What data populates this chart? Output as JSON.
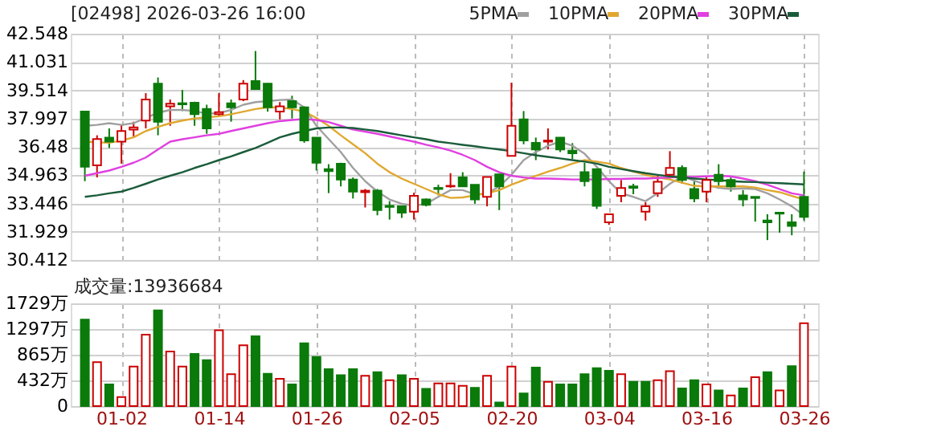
{
  "chart_data": [
    {
      "type": "candlestick",
      "title": "[02498] 2026-03-26 16:00",
      "categories": [
        null,
        null,
        null,
        null,
        null,
        null,
        null,
        null,
        null,
        null,
        null,
        null,
        null,
        null,
        null,
        null,
        null,
        null,
        null,
        null,
        null,
        null,
        null,
        null,
        null,
        null,
        null,
        null,
        null,
        null,
        null,
        null,
        null,
        null,
        null,
        null,
        null,
        null,
        null,
        null,
        null,
        null,
        null,
        null,
        null,
        null,
        null,
        null,
        null,
        null,
        null,
        null,
        null,
        null,
        null,
        null,
        null,
        null,
        null,
        null
      ],
      "ohlc": [
        [
          38.37,
          38.4,
          34.64,
          35.41
        ],
        [
          35.49,
          37.1,
          34.84,
          36.9
        ],
        [
          36.98,
          37.47,
          36.42,
          36.76
        ],
        [
          36.76,
          37.67,
          35.58,
          37.33
        ],
        [
          37.41,
          37.83,
          37.04,
          37.52
        ],
        [
          37.89,
          39.36,
          37.47,
          39.02
        ],
        [
          39.87,
          40.2,
          37.1,
          37.83
        ],
        [
          38.65,
          39.02,
          37.61,
          38.79
        ],
        [
          38.82,
          39.53,
          38.4,
          38.76
        ],
        [
          38.85,
          38.9,
          37.61,
          38.23
        ],
        [
          38.51,
          38.74,
          37.18,
          37.47
        ],
        [
          38.23,
          39.36,
          38.12,
          38.34
        ],
        [
          38.82,
          39.02,
          37.83,
          38.6
        ],
        [
          39.02,
          40.06,
          38.93,
          39.87
        ],
        [
          40.01,
          41.62,
          39.58,
          39.58
        ],
        [
          39.87,
          39.9,
          38.37,
          38.6
        ],
        [
          38.37,
          38.88,
          37.95,
          38.65
        ],
        [
          38.93,
          39.22,
          38.0,
          38.6
        ],
        [
          38.6,
          38.65,
          36.7,
          36.82
        ],
        [
          36.98,
          37.0,
          35.21,
          35.63
        ],
        [
          35.29,
          35.55,
          34.0,
          35.18
        ],
        [
          35.58,
          35.63,
          34.36,
          34.73
        ],
        [
          34.73,
          34.84,
          33.71,
          34.08
        ],
        [
          34.05,
          34.22,
          33.23,
          34.13
        ],
        [
          34.13,
          34.22,
          32.81,
          33.09
        ],
        [
          33.32,
          33.57,
          32.58,
          33.26
        ],
        [
          33.29,
          33.3,
          32.67,
          32.95
        ],
        [
          33.01,
          34.02,
          32.58,
          33.85
        ],
        [
          33.66,
          33.71,
          33.29,
          33.37
        ],
        [
          34.28,
          34.45,
          33.88,
          34.22
        ],
        [
          34.36,
          35.07,
          34.28,
          34.39
        ],
        [
          34.84,
          35.12,
          34.36,
          34.36
        ],
        [
          34.45,
          34.45,
          33.43,
          33.66
        ],
        [
          33.8,
          34.87,
          33.29,
          34.87
        ],
        [
          35.01,
          35.01,
          33.09,
          34.36
        ],
        [
          36.0,
          39.92,
          36.0,
          37.61
        ],
        [
          37.95,
          38.4,
          36.62,
          36.82
        ],
        [
          36.7,
          36.98,
          35.77,
          36.34
        ],
        [
          36.76,
          37.47,
          36.34,
          36.82
        ],
        [
          36.98,
          37.0,
          36.2,
          36.34
        ],
        [
          36.28,
          36.68,
          35.83,
          36.14
        ],
        [
          35.12,
          35.63,
          34.36,
          34.64
        ],
        [
          35.29,
          35.3,
          33.15,
          33.32
        ],
        [
          32.44,
          32.87,
          32.3,
          32.87
        ],
        [
          33.85,
          34.7,
          33.51,
          34.27
        ],
        [
          34.36,
          34.5,
          33.94,
          34.28
        ],
        [
          33.01,
          33.51,
          32.53,
          33.29
        ],
        [
          33.99,
          34.93,
          33.8,
          34.61
        ],
        [
          34.98,
          36.25,
          34.78,
          35.35
        ],
        [
          35.35,
          35.49,
          34.5,
          34.7
        ],
        [
          34.22,
          34.7,
          33.51,
          33.71
        ],
        [
          34.08,
          34.84,
          33.51,
          34.7
        ],
        [
          34.98,
          35.55,
          34.36,
          34.64
        ],
        [
          34.7,
          34.84,
          34.08,
          34.36
        ],
        [
          33.88,
          34.16,
          33.29,
          33.66
        ],
        [
          33.8,
          33.8,
          32.47,
          33.74
        ],
        [
          32.53,
          32.87,
          31.48,
          32.44
        ],
        [
          32.95,
          32.95,
          31.88,
          32.9
        ],
        [
          32.44,
          32.87,
          31.74,
          32.24
        ],
        [
          33.8,
          35.15,
          32.53,
          32.72
        ]
      ],
      "series": [
        {
          "type": "line",
          "name": "5PMA",
          "color": "#a0a0a0",
          "values": [
            37.61,
            37.66,
            37.75,
            37.66,
            37.75,
            38.03,
            38.31,
            38.46,
            38.46,
            38.4,
            38.26,
            38.29,
            38.46,
            38.74,
            38.88,
            38.93,
            38.99,
            39.02,
            38.6,
            37.61,
            36.9,
            36.2,
            35.35,
            34.64,
            34.08,
            33.66,
            33.43,
            33.32,
            33.43,
            33.8,
            34.16,
            34.16,
            33.94,
            33.97,
            34.36,
            34.98,
            35.77,
            36.2,
            36.54,
            36.76,
            36.54,
            36.11,
            35.41,
            34.64,
            33.99,
            33.8,
            33.57,
            33.99,
            34.5,
            34.9,
            34.67,
            34.45,
            34.28,
            34.22,
            34.25,
            34.22,
            33.99,
            33.66,
            33.29,
            32.81
          ]
        },
        {
          "type": "line",
          "name": "10PMA",
          "color": "#e0a830",
          "values": [
            36.76,
            36.73,
            36.7,
            36.82,
            36.99,
            37.33,
            37.55,
            37.75,
            37.89,
            38.0,
            38.06,
            38.12,
            38.23,
            38.37,
            38.51,
            38.6,
            38.6,
            38.51,
            38.37,
            38.03,
            37.61,
            37.1,
            36.62,
            36.14,
            35.58,
            35.12,
            34.78,
            34.5,
            34.22,
            33.94,
            33.74,
            33.77,
            33.88,
            33.99,
            34.16,
            34.45,
            34.7,
            34.93,
            35.15,
            35.35,
            35.58,
            35.77,
            35.69,
            35.58,
            35.35,
            35.15,
            34.98,
            34.84,
            34.73,
            34.56,
            34.39,
            34.36,
            34.36,
            34.36,
            34.36,
            34.3,
            34.16,
            34.05,
            33.85,
            33.66
          ]
        },
        {
          "type": "line",
          "name": "20PMA",
          "color": "#e040e0",
          "values": [
            34.93,
            35.07,
            35.21,
            35.41,
            35.63,
            35.91,
            36.34,
            36.76,
            36.89,
            36.99,
            37.1,
            37.18,
            37.33,
            37.47,
            37.61,
            37.75,
            37.86,
            37.92,
            37.97,
            37.92,
            37.81,
            37.61,
            37.41,
            37.3,
            37.18,
            37.04,
            36.9,
            36.76,
            36.59,
            36.45,
            36.28,
            36.05,
            35.77,
            35.41,
            35.12,
            34.93,
            34.84,
            34.78,
            34.78,
            34.76,
            34.73,
            34.73,
            34.73,
            34.76,
            34.76,
            34.78,
            34.78,
            34.81,
            34.84,
            34.87,
            34.87,
            34.9,
            34.93,
            34.9,
            34.78,
            34.64,
            34.45,
            34.22,
            33.99,
            33.88
          ]
        },
        {
          "type": "line",
          "name": "30PMA",
          "color": "#1a5c3a",
          "values": [
            33.8,
            33.88,
            33.99,
            34.08,
            34.28,
            34.5,
            34.73,
            34.93,
            35.12,
            35.35,
            35.55,
            35.77,
            35.97,
            36.2,
            36.42,
            36.7,
            36.99,
            37.18,
            37.33,
            37.47,
            37.52,
            37.52,
            37.49,
            37.41,
            37.33,
            37.21,
            37.1,
            36.99,
            36.89,
            36.76,
            36.68,
            36.59,
            36.51,
            36.42,
            36.34,
            36.25,
            36.14,
            36.03,
            35.94,
            35.86,
            35.77,
            35.69,
            35.58,
            35.41,
            35.29,
            35.18,
            35.07,
            34.98,
            34.9,
            34.84,
            34.78,
            34.73,
            34.7,
            34.64,
            34.61,
            34.59,
            34.56,
            34.53,
            34.5,
            34.47
          ]
        }
      ],
      "ylim": [
        30.412,
        42.548
      ],
      "yticks": [
        30.412,
        31.929,
        33.446,
        34.963,
        36.48,
        37.997,
        39.514,
        41.031,
        42.548
      ],
      "grid": true,
      "legend": "top right",
      "tick_labels": "y"
    },
    {
      "type": "bar",
      "annotations": [
        "成交量:13936684"
      ],
      "categories": [
        null,
        null,
        null,
        "01-02",
        null,
        null,
        null,
        null,
        null,
        null,
        null,
        "01-14",
        null,
        null,
        null,
        null,
        null,
        null,
        null,
        "01-26",
        null,
        null,
        null,
        null,
        null,
        null,
        null,
        "02-05",
        null,
        null,
        null,
        null,
        null,
        null,
        null,
        "02-20",
        null,
        null,
        null,
        null,
        null,
        null,
        null,
        "03-04",
        null,
        null,
        null,
        null,
        null,
        null,
        null,
        "03-16",
        null,
        null,
        null,
        null,
        null,
        null,
        null,
        "03-26"
      ],
      "values": [
        1457,
        741,
        366,
        153,
        665,
        1201,
        1610,
        920,
        665,
        878,
        775,
        1278,
        537,
        1022,
        1176,
        545,
        460,
        366,
        1056,
        826,
        622,
        520,
        622,
        511,
        571,
        435,
        520,
        460,
        290,
        383,
        383,
        341,
        307,
        511,
        60,
        665,
        213,
        648,
        409,
        366,
        366,
        537,
        639,
        596,
        537,
        409,
        409,
        435,
        588,
        298,
        435,
        366,
        264,
        179,
        298,
        486,
        571,
        264,
        673,
        1393.67
      ],
      "colors": [
        "#0a7a0a",
        "#cc0000",
        "#0a7a0a",
        "#cc0000",
        "#cc0000",
        "#cc0000",
        "#0a7a0a",
        "#cc0000",
        "#cc0000",
        "#0a7a0a",
        "#0a7a0a",
        "#cc0000",
        "#cc0000",
        "#cc0000",
        "#0a7a0a",
        "#0a7a0a",
        "#cc0000",
        "#0a7a0a",
        "#0a7a0a",
        "#0a7a0a",
        "#0a7a0a",
        "#0a7a0a",
        "#0a7a0a",
        "#cc0000",
        "#0a7a0a",
        "#cc0000",
        "#0a7a0a",
        "#cc0000",
        "#0a7a0a",
        "#cc0000",
        "#cc0000",
        "#cc0000",
        "#0a7a0a",
        "#cc0000",
        "#0a7a0a",
        "#cc0000",
        "#0a7a0a",
        "#0a7a0a",
        "#cc0000",
        "#0a7a0a",
        "#0a7a0a",
        "#0a7a0a",
        "#0a7a0a",
        "#0a7a0a",
        "#cc0000",
        "#0a7a0a",
        "#0a7a0a",
        "#cc0000",
        "#cc0000",
        "#0a7a0a",
        "#0a7a0a",
        "#cc0000",
        "#0a7a0a",
        "#cc0000",
        "#0a7a0a",
        "#cc0000",
        "#0a7a0a",
        "#cc0000",
        "#0a7a0a",
        "#cc0000"
      ],
      "ylim": [
        0,
        1729
      ],
      "yticks": [
        0,
        {
          "value": 432,
          "label": "432万"
        },
        {
          "value": 865,
          "label": "865万"
        },
        {
          "value": 1297,
          "label": "1297万"
        },
        {
          "value": 1729,
          "label": "1729万"
        }
      ],
      "grid": true
    }
  ]
}
